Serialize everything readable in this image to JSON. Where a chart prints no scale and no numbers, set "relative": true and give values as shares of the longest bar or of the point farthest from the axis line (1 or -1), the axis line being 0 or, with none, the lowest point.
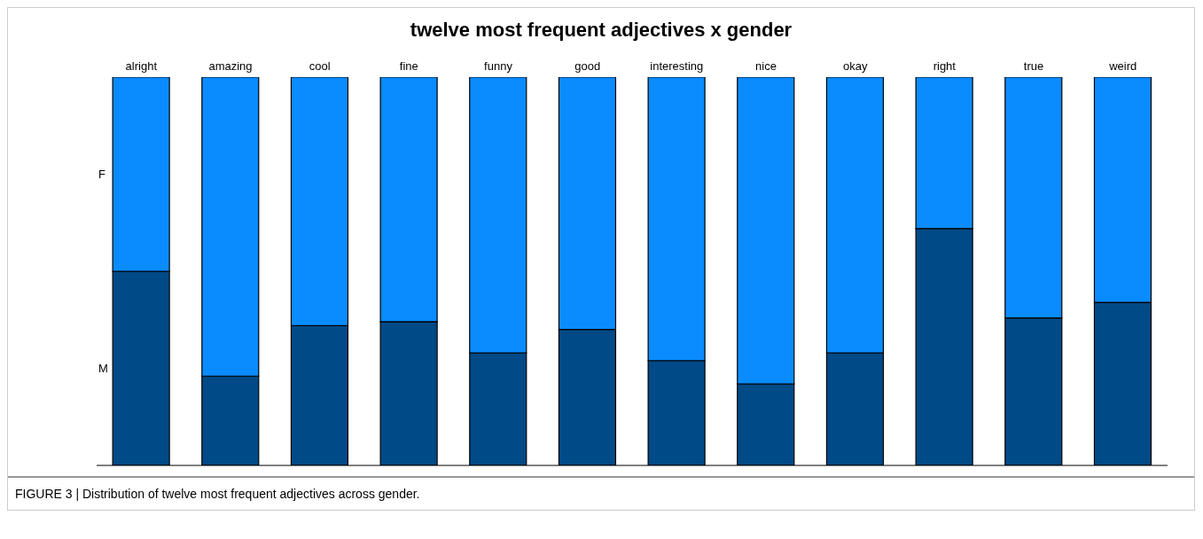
{
  "chart_data": {
    "type": "bar",
    "title": "twelve most frequent adjectives x gender",
    "stacked": true,
    "relative": true,
    "categories": [
      "alright",
      "amazing",
      "cool",
      "fine",
      "funny",
      "good",
      "interesting",
      "nice",
      "okay",
      "right",
      "true",
      "weird"
    ],
    "series": [
      {
        "name": "M",
        "color": "#004a87",
        "values": [
          0.5,
          0.23,
          0.36,
          0.37,
          0.29,
          0.35,
          0.27,
          0.21,
          0.29,
          0.61,
          0.38,
          0.42
        ]
      },
      {
        "name": "F",
        "color": "#0a8cff",
        "values": [
          0.5,
          0.77,
          0.64,
          0.63,
          0.71,
          0.65,
          0.73,
          0.79,
          0.71,
          0.39,
          0.62,
          0.58
        ]
      }
    ],
    "legend": false,
    "annotations": [
      "FIGURE 3 | Distribution of twelve most frequent adjectives across gender."
    ]
  }
}
